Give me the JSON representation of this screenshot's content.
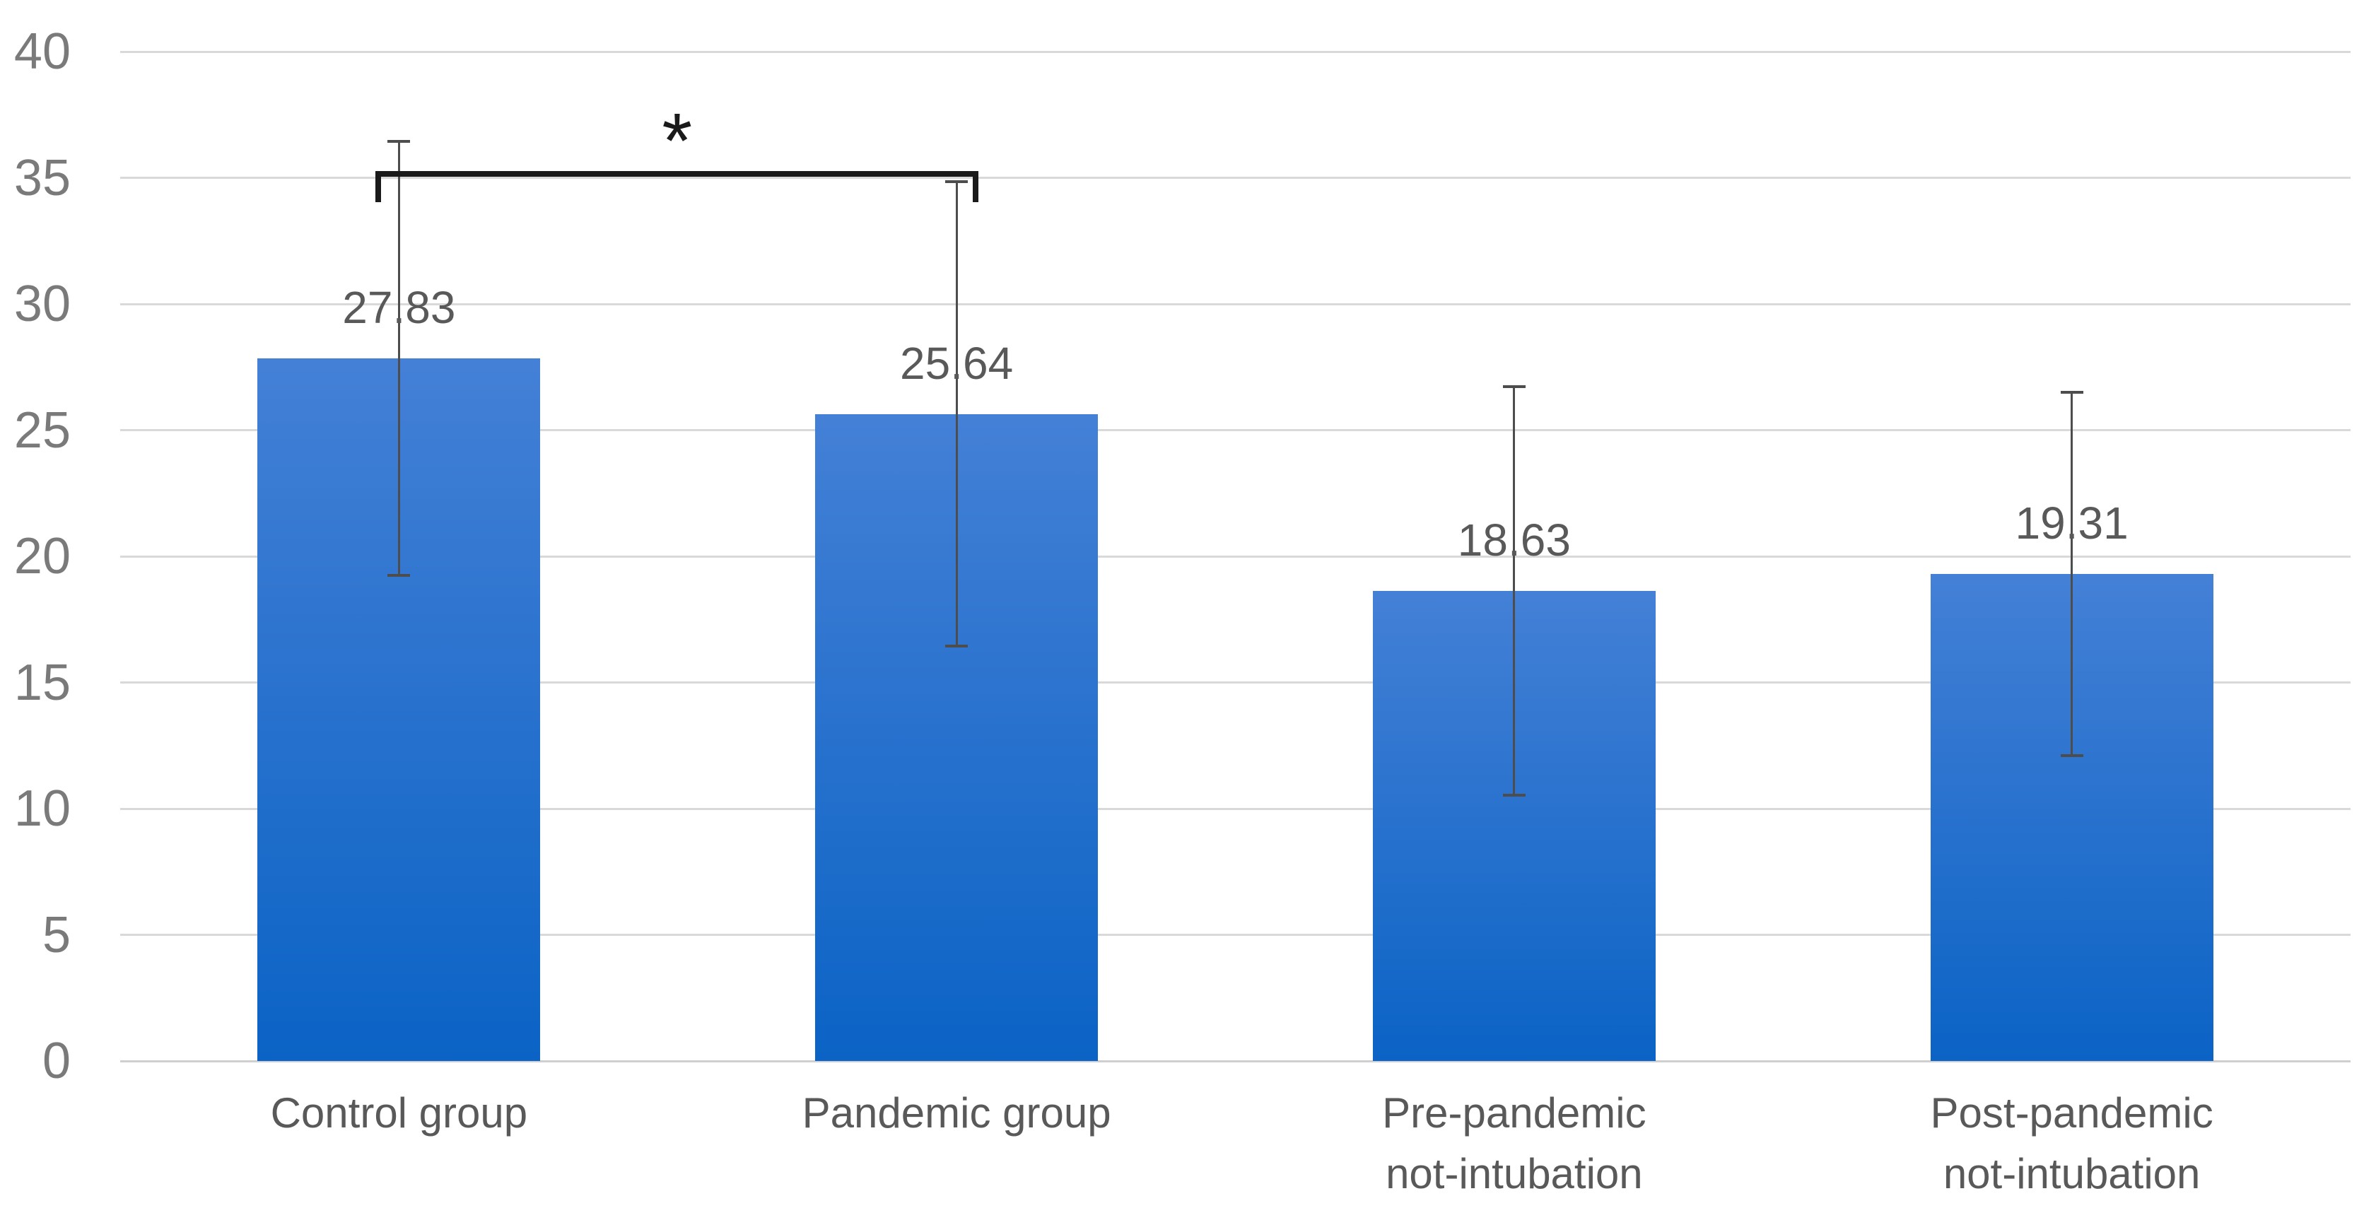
{
  "chart_data": {
    "type": "bar",
    "title": "",
    "xlabel": "",
    "ylabel": "",
    "categories": [
      "Control group",
      "Pandemic group",
      "Pre-pandemic\nnot-intubation",
      "Post-pandemic\nnot-intubation"
    ],
    "values": [
      27.83,
      25.64,
      18.63,
      19.31
    ],
    "value_labels": [
      "27.83",
      "25.64",
      "18.63",
      "19.31"
    ],
    "error_bars": [
      8.6,
      9.2,
      8.1,
      7.2
    ],
    "ylim": [
      0,
      40
    ],
    "yticks": [
      0,
      5,
      10,
      15,
      20,
      25,
      30,
      35,
      40
    ],
    "grid": true,
    "legend": "none",
    "significance": {
      "pair": [
        0,
        1
      ],
      "between": [
        "Control group",
        "Pandemic group"
      ],
      "symbol": "*"
    },
    "colors": {
      "bar_top": "#4480D6",
      "bar_bottom": "#0B63C5",
      "gridline": "#D9D9D9",
      "axis_line": "#CFCFCF",
      "tick_label": "#7A7A7A",
      "value_label": "#595959",
      "category_label": "#595959",
      "error_bar": "#4D4D4D",
      "bracket": "#1A1A1A"
    }
  }
}
